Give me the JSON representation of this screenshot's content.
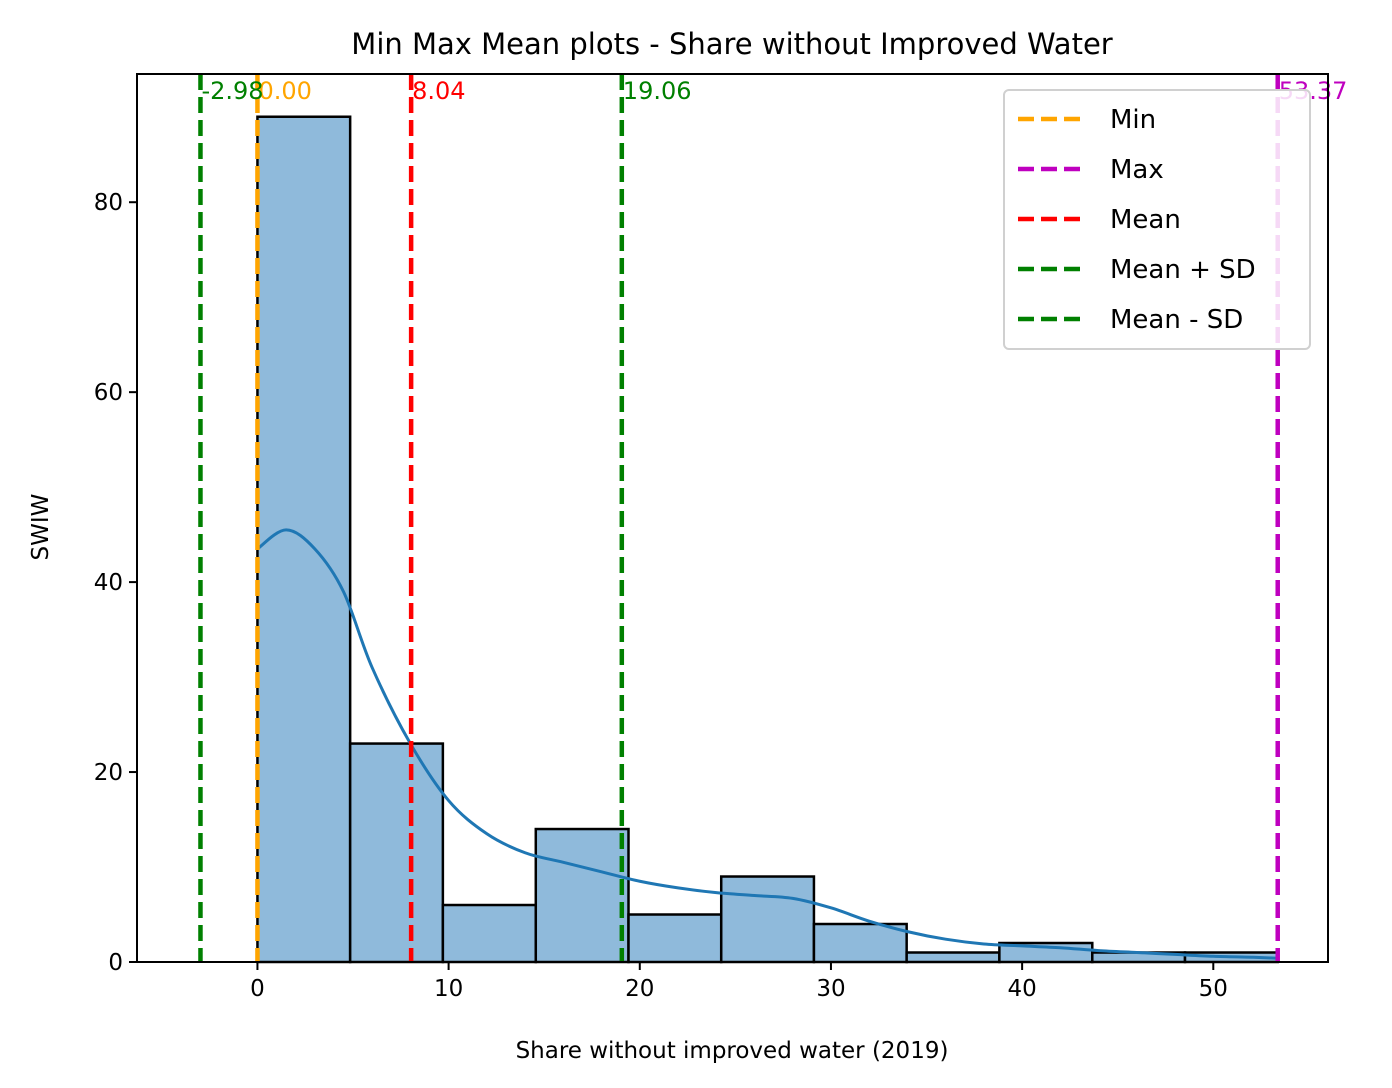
{
  "chart_data": {
    "type": "histogram",
    "title": "Min Max Mean plots - Share without Improved Water",
    "xlabel": "Share without improved water (2019)",
    "ylabel": "SWIW",
    "xlim": [
      -6.3,
      56.0
    ],
    "ylim": [
      0,
      93.5
    ],
    "xticks": [
      0,
      10,
      20,
      30,
      40,
      50
    ],
    "yticks": [
      0,
      20,
      40,
      60,
      80
    ],
    "grid": false,
    "bins": {
      "edges": [
        0.0,
        4.85,
        9.7,
        14.56,
        19.41,
        24.26,
        29.11,
        33.96,
        38.81,
        43.67,
        48.52,
        53.37
      ],
      "counts": [
        89,
        23,
        6,
        14,
        5,
        9,
        4,
        1,
        2,
        1,
        1
      ],
      "fill_color": "#8fbadb",
      "edge_color": "#000000"
    },
    "kde": {
      "color": "#1f77b4",
      "x": [
        0,
        1.5,
        3,
        4.5,
        6,
        8,
        10,
        12,
        14,
        16,
        18,
        20,
        22,
        24,
        26,
        28,
        30,
        32,
        34,
        36,
        38,
        40,
        42,
        44,
        46,
        48,
        50,
        52,
        53.37
      ],
      "y": [
        43.5,
        45.5,
        43.5,
        39,
        31,
        23,
        17,
        13.5,
        11.5,
        10.5,
        9.5,
        8.5,
        7.8,
        7.3,
        7.0,
        6.7,
        5.7,
        4.3,
        3.2,
        2.4,
        1.9,
        1.7,
        1.5,
        1.2,
        1.0,
        0.8,
        0.6,
        0.5,
        0.4
      ]
    },
    "vlines": [
      {
        "name": "Min",
        "x": 0.0,
        "label": "0.00",
        "color": "#ffa500"
      },
      {
        "name": "Max",
        "x": 53.37,
        "label": "53.37",
        "color": "#bf00bf"
      },
      {
        "name": "Mean",
        "x": 8.04,
        "label": "8.04",
        "color": "#ff0000"
      },
      {
        "name": "Mean + SD",
        "x": 19.06,
        "label": "19.06",
        "color": "#008000"
      },
      {
        "name": "Mean - SD",
        "x": -2.98,
        "label": "-2.98",
        "color": "#008000"
      }
    ],
    "legend": {
      "placement": "top-right",
      "entries": [
        {
          "label": "Min",
          "color": "#ffa500"
        },
        {
          "label": "Max",
          "color": "#bf00bf"
        },
        {
          "label": "Mean",
          "color": "#ff0000"
        },
        {
          "label": "Mean + SD",
          "color": "#008000"
        },
        {
          "label": "Mean - SD",
          "color": "#008000"
        }
      ]
    }
  }
}
